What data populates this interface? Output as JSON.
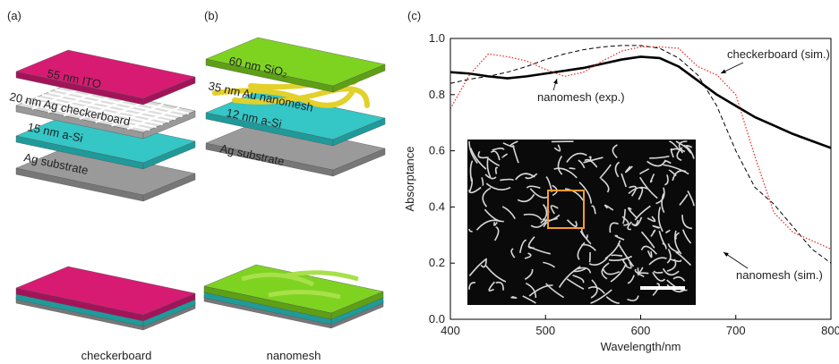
{
  "panels": {
    "a": {
      "label": "(a)",
      "layers": [
        "55 nm ITO",
        "20 nm Ag checkerboard",
        "15 nm a-Si",
        "Ag substrate"
      ],
      "caption": "checkerboard"
    },
    "b": {
      "label": "(b)",
      "layers": [
        "60 nm SiO₂",
        "35 nm Au nanomesh",
        "12 nm a-Si",
        "Ag substrate"
      ],
      "caption": "nanomesh"
    },
    "c": {
      "label": "(c)"
    }
  },
  "chart_data": {
    "type": "line",
    "x_label": "Wavelength/nm",
    "y_label": "Absorptance",
    "x": [
      400,
      420,
      440,
      460,
      480,
      500,
      520,
      540,
      560,
      580,
      600,
      620,
      640,
      660,
      680,
      700,
      720,
      740,
      760,
      780,
      800
    ],
    "series": [
      {
        "name": "nanomesh (exp.)",
        "color": "#000000",
        "dash": "none",
        "width": 2.6,
        "values": [
          0.88,
          0.875,
          0.865,
          0.858,
          0.865,
          0.875,
          0.885,
          0.895,
          0.91,
          0.925,
          0.935,
          0.93,
          0.9,
          0.85,
          0.8,
          0.76,
          0.72,
          0.69,
          0.66,
          0.635,
          0.61
        ]
      },
      {
        "name": "nanomesh (sim.)",
        "color": "#000000",
        "dash": "5,3",
        "width": 1,
        "values": [
          0.84,
          0.855,
          0.865,
          0.88,
          0.9,
          0.925,
          0.945,
          0.96,
          0.97,
          0.975,
          0.975,
          0.965,
          0.93,
          0.87,
          0.76,
          0.6,
          0.47,
          0.41,
          0.33,
          0.25,
          0.2
        ]
      },
      {
        "name": "checkerboard (sim.)",
        "color": "#e8231c",
        "dash": "1.5,2",
        "width": 1.2,
        "values": [
          0.75,
          0.87,
          0.945,
          0.935,
          0.92,
          0.89,
          0.865,
          0.88,
          0.92,
          0.955,
          0.97,
          0.97,
          0.965,
          0.9,
          0.87,
          0.8,
          0.58,
          0.38,
          0.31,
          0.28,
          0.25
        ]
      }
    ],
    "xlim": [
      400,
      800
    ],
    "ylim": [
      0,
      1
    ],
    "xticks": [
      400,
      500,
      600,
      700,
      800
    ],
    "yticks": [
      {
        "value": 0,
        "label": "0.0"
      },
      0.2,
      0.4,
      0.6,
      0.8,
      {
        "value": 1,
        "label": "1.0"
      }
    ]
  }
}
